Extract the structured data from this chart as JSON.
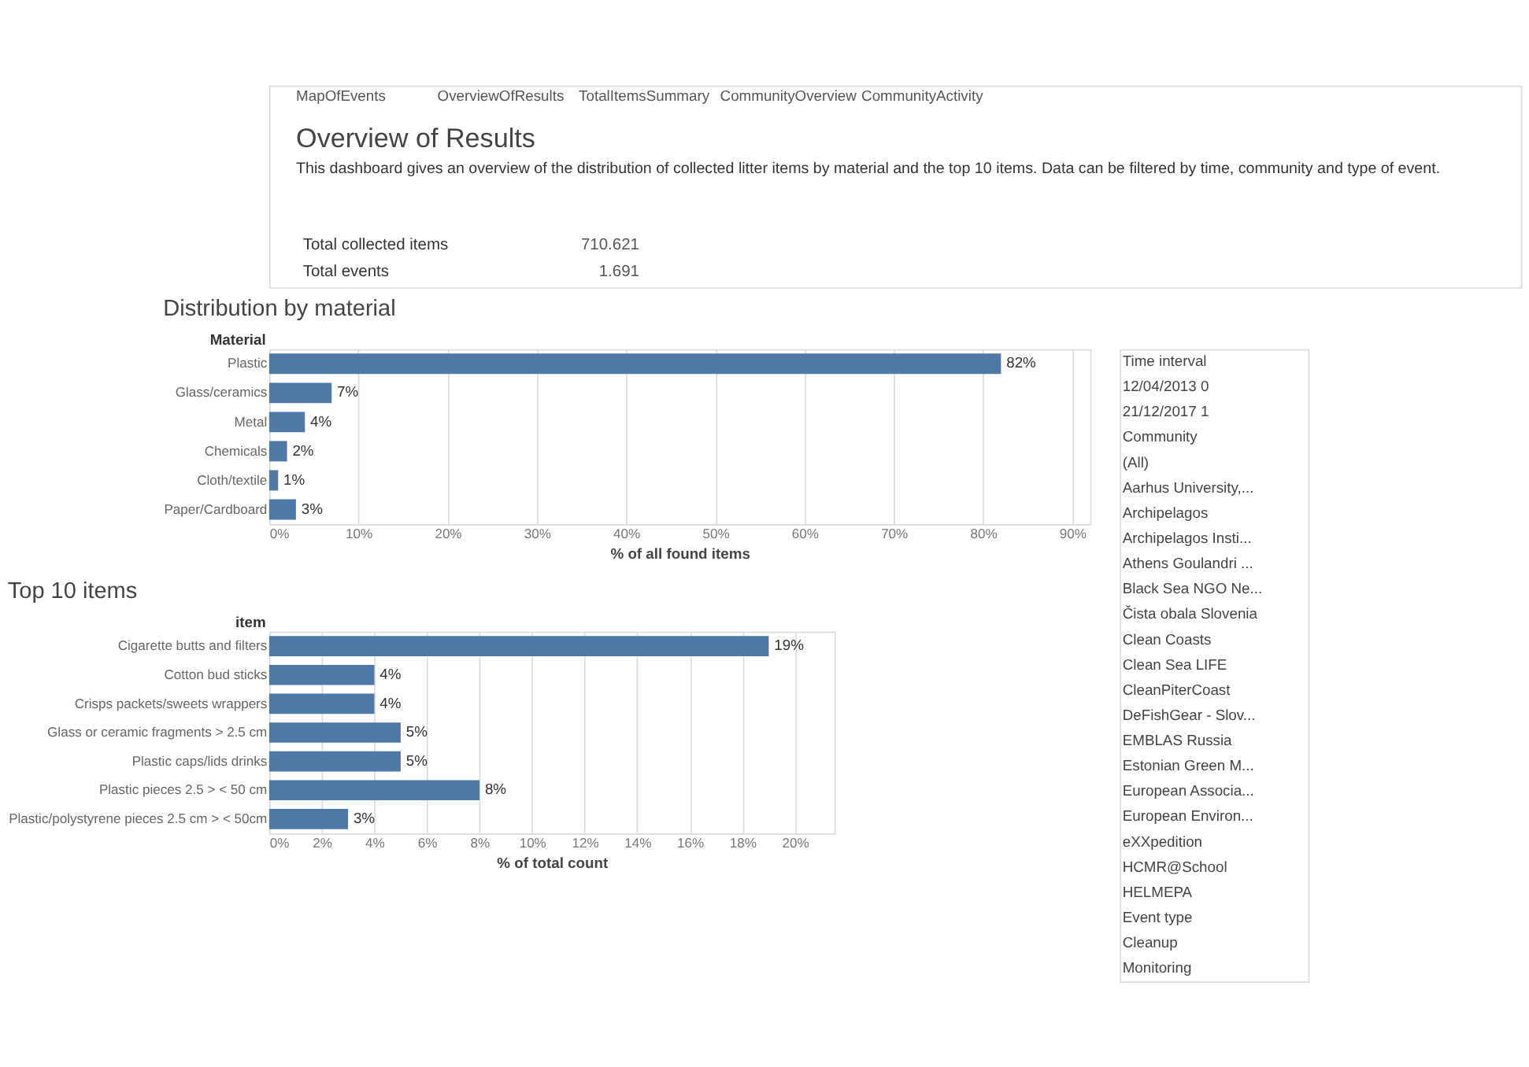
{
  "chart_data": [
    {
      "type": "other",
      "title": "Overview of Results",
      "subtitle": "This dashboard gives an overview of the distribution of collected litter items by material and the top 10 items. Data can be filtered by time, community and type of event.",
      "annotations": [
        "MapOfEvents",
        "OverviewOfResults",
        "TotalItemsSummary",
        "CommunityOverview",
        "CommunityActivity",
        "Total collected items",
        "710.621",
        "Total events",
        "1.691"
      ]
    },
    {
      "type": "bar",
      "orientation": "horizontal",
      "title": "Distribution by material",
      "ylabel": "Material",
      "xlabel": "% of all found items",
      "categories": [
        "Plastic",
        "Glass/ceramics",
        "Metal",
        "Chemicals",
        "Cloth/textile",
        "Paper/Cardboard"
      ],
      "values": [
        82,
        7,
        4,
        2,
        1,
        3
      ],
      "value_labels": [
        "82%",
        "7%",
        "4%",
        "2%",
        "1%",
        "3%"
      ],
      "color": "#4e79a7",
      "xlim": [
        0,
        92
      ],
      "xticks": [
        {
          "value": 0,
          "label": "0%"
        },
        {
          "value": 10,
          "label": "10%"
        },
        {
          "value": 20,
          "label": "20%"
        },
        {
          "value": 30,
          "label": "30%"
        },
        {
          "value": 40,
          "label": "40%"
        },
        {
          "value": 50,
          "label": "50%"
        },
        {
          "value": 60,
          "label": "60%"
        },
        {
          "value": 70,
          "label": "70%"
        },
        {
          "value": 80,
          "label": "80%"
        },
        {
          "value": 90,
          "label": "90%"
        }
      ],
      "grid": "x"
    },
    {
      "type": "bar",
      "orientation": "horizontal",
      "title": "Top 10 items",
      "ylabel": "item",
      "xlabel": "% of total count",
      "categories": [
        "Cigarette butts and filters",
        "Cotton bud sticks",
        "Crisps packets/sweets wrappers",
        "Glass or ceramic fragments > 2.5 cm",
        "Plastic caps/lids drinks",
        "Plastic pieces 2.5 > < 50 cm",
        "Plastic/polystyrene pieces 2.5 cm > < 50cm"
      ],
      "values": [
        19,
        4,
        4,
        5,
        5,
        8,
        3
      ],
      "value_labels": [
        "19%",
        "4%",
        "4%",
        "5%",
        "5%",
        "8%",
        "3%"
      ],
      "color": "#4e79a7",
      "xlim": [
        0,
        21.5
      ],
      "xticks": [
        {
          "value": 0,
          "label": "0%"
        },
        {
          "value": 2,
          "label": "2%"
        },
        {
          "value": 4,
          "label": "4%"
        },
        {
          "value": 6,
          "label": "6%"
        },
        {
          "value": 8,
          "label": "8%"
        },
        {
          "value": 10,
          "label": "10%"
        },
        {
          "value": 12,
          "label": "12%"
        },
        {
          "value": 14,
          "label": "14%"
        },
        {
          "value": 16,
          "label": "16%"
        },
        {
          "value": 18,
          "label": "18%"
        },
        {
          "value": 20,
          "label": "20%"
        }
      ],
      "grid": "x"
    },
    {
      "type": "other",
      "annotations": [
        "Time interval",
        "12/04/2013 0",
        "21/12/2017 1",
        "Community",
        "(All)",
        "Aarhus University,...",
        "Archipelagos",
        "Archipelagos Insti...",
        "Athens Goulandri ...",
        "Black Sea NGO Ne...",
        "Čista obala Slovenia",
        "Clean Coasts",
        "Clean Sea LIFE",
        "CleanPiterCoast",
        "DeFishGear - Slov...",
        "EMBLAS Russia",
        "Estonian Green M...",
        "European Associa...",
        "European Environ...",
        "eXXpedition",
        "HCMR@School",
        "HELMEPA",
        "Event type",
        "Cleanup",
        "Monitoring"
      ]
    }
  ]
}
